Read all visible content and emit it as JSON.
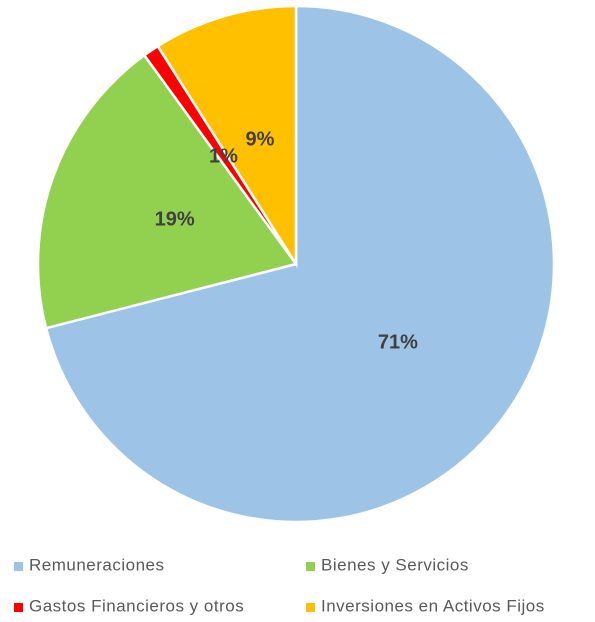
{
  "chart_data": {
    "type": "pie",
    "categories": [
      "Remuneraciones",
      "Bienes y Servicios",
      "Gastos Financieros y otros",
      "Inversiones en Activos Fijos"
    ],
    "values": [
      71,
      19,
      1,
      9
    ],
    "value_labels": [
      "71%",
      "19%",
      "1%",
      "9%"
    ],
    "colors": [
      "#9dc3e6",
      "#92d050",
      "#ff0000",
      "#ffc000"
    ],
    "legend": "bottom"
  }
}
